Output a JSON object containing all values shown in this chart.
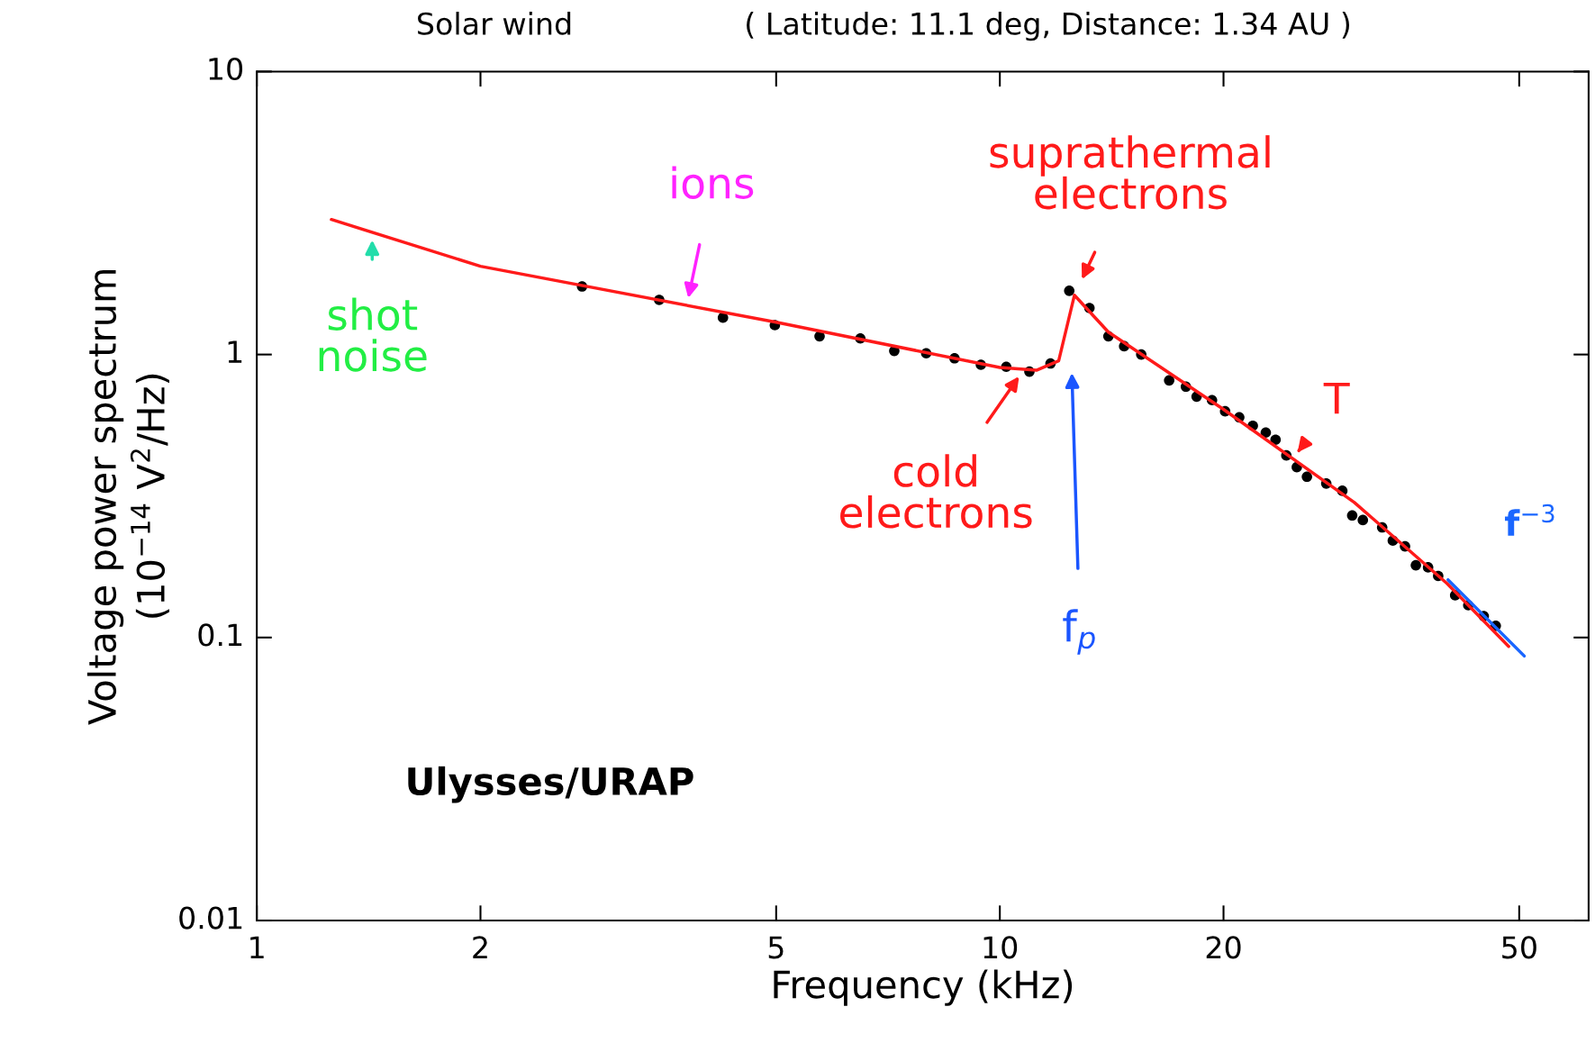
{
  "chart_data": {
    "type": "scatter",
    "title": "Solar wind",
    "subtitle": "( Latitude: 11.1 deg, Distance: 1.34 AU )",
    "xlabel": "Frequency (kHz)",
    "ylabel": "Voltage power spectrum\n(10$^{−14}$ V$^{2}$/Hz)",
    "log": "xy",
    "xlim": [
      1,
      62
    ],
    "ylim": [
      0.01,
      10
    ],
    "xticks": [
      1,
      2,
      5,
      10,
      20,
      50
    ],
    "yticks": [
      0.01,
      0.1,
      1,
      10
    ],
    "grid": false,
    "series": [
      {
        "marker": "circle",
        "color": "#000000",
        "x": [
          2.74,
          3.48,
          4.24,
          4.98,
          5.72,
          6.49,
          7.21,
          7.96,
          8.69,
          9.43,
          10.2,
          10.96,
          11.7,
          12.4,
          13.2,
          14.0,
          14.7,
          15.5,
          16.9,
          17.8,
          18.4,
          19.3,
          20.1,
          21.0,
          21.9,
          22.8,
          23.5,
          24.3,
          25.1,
          25.9,
          27.5,
          28.9,
          29.8,
          30.8,
          32.7,
          33.8,
          35.1,
          36.3,
          37.7,
          38.9,
          41.0,
          42.7,
          44.8,
          46.5
        ],
        "values": [
          1.74,
          1.56,
          1.35,
          1.27,
          1.16,
          1.14,
          1.03,
          1.01,
          0.97,
          0.92,
          0.905,
          0.87,
          0.93,
          1.68,
          1.46,
          1.16,
          1.07,
          1.0,
          0.81,
          0.77,
          0.71,
          0.69,
          0.63,
          0.6,
          0.56,
          0.53,
          0.5,
          0.44,
          0.4,
          0.37,
          0.35,
          0.33,
          0.27,
          0.26,
          0.245,
          0.22,
          0.21,
          0.18,
          0.177,
          0.165,
          0.141,
          0.13,
          0.119,
          0.11
        ]
      },
      {
        "type": "line",
        "marker": "none",
        "color": "#ff1a1a",
        "x": [
          1.26,
          2,
          5,
          10,
          11.2,
          12,
          12.6,
          14,
          20,
          30,
          40,
          48.4
        ],
        "values": [
          3.0,
          2.05,
          1.3,
          0.9,
          0.88,
          0.95,
          1.62,
          1.2,
          0.64,
          0.3,
          0.155,
          0.093
        ]
      },
      {
        "type": "line",
        "marker": "none",
        "name": "f$^{−3}$",
        "color": "#1a66ff",
        "x": [
          40.1,
          50.8
        ],
        "values": [
          0.16,
          0.086
        ]
      }
    ],
    "annotations": [
      {
        "text": "shot\nnoise",
        "x": 1.43,
        "y": 2.7
      },
      {
        "text": "ions",
        "x": 3.79,
        "y": 1.49
      },
      {
        "text": "suprathermal\nelectrons",
        "x": 12.6,
        "y": 1.62
      },
      {
        "text": "cold\nelectrons",
        "x": 10.76,
        "y": 0.88
      },
      {
        "text": "T",
        "x": 24.8,
        "y": 0.43
      },
      "f$_{p}$",
      "Ulysses/URAP"
    ]
  }
}
